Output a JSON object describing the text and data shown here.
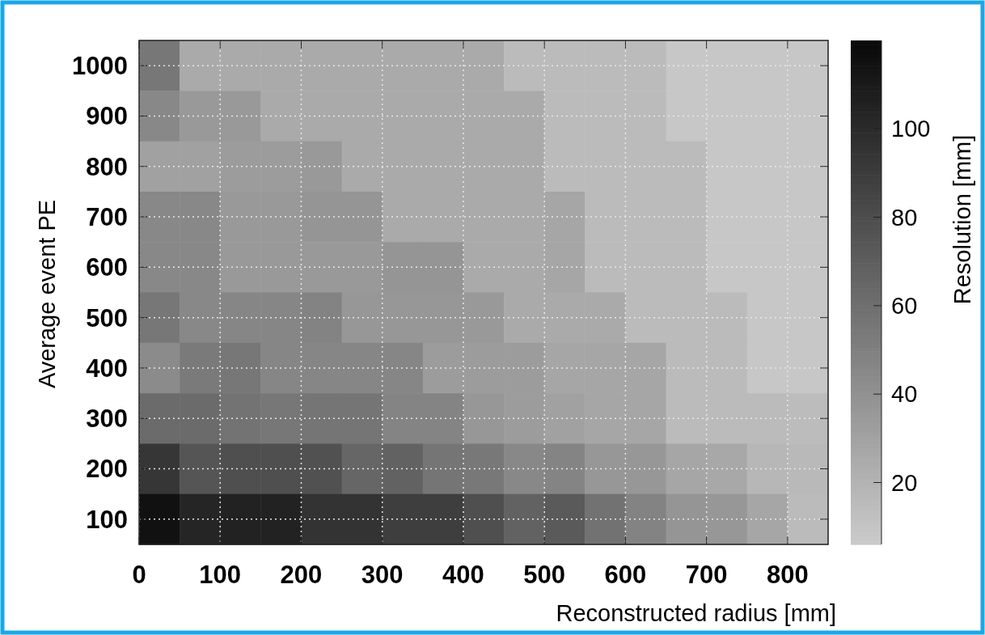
{
  "chart_data": {
    "type": "heatmap",
    "xlabel": "Reconstructed radius [mm]",
    "ylabel": "Average event PE",
    "clabel": "Resolution [mm]",
    "xlim": [
      0,
      850
    ],
    "xticks": [
      0,
      100,
      200,
      300,
      400,
      500,
      600,
      700,
      800
    ],
    "ylim": [
      50,
      1050
    ],
    "yticks": [
      100,
      200,
      300,
      400,
      500,
      600,
      700,
      800,
      900,
      1000
    ],
    "clim": [
      6,
      120
    ],
    "cticks": [
      20,
      40,
      60,
      80,
      100
    ],
    "grid": true,
    "cells": [
      [
        55,
        25,
        25,
        25,
        25,
        25,
        25,
        25,
        25,
        15,
        15,
        15,
        15,
        8,
        8,
        8,
        8
      ],
      [
        45,
        35,
        35,
        25,
        25,
        25,
        25,
        25,
        25,
        25,
        15,
        15,
        15,
        8,
        8,
        8,
        8
      ],
      [
        30,
        30,
        33,
        33,
        35,
        25,
        25,
        25,
        25,
        25,
        15,
        15,
        15,
        15,
        8,
        8,
        8
      ],
      [
        45,
        45,
        35,
        35,
        37,
        37,
        25,
        25,
        25,
        25,
        27,
        15,
        15,
        15,
        8,
        8,
        8
      ],
      [
        45,
        45,
        35,
        35,
        35,
        35,
        37,
        37,
        25,
        25,
        27,
        15,
        15,
        15,
        8,
        8,
        8
      ],
      [
        55,
        45,
        46,
        46,
        48,
        36,
        36,
        36,
        35,
        25,
        25,
        25,
        15,
        15,
        15,
        8,
        8
      ],
      [
        43,
        53,
        55,
        46,
        46,
        46,
        46,
        33,
        33,
        33,
        27,
        27,
        27,
        15,
        15,
        8,
        8
      ],
      [
        62,
        62,
        57,
        55,
        56,
        56,
        47,
        47,
        36,
        33,
        30,
        27,
        27,
        15,
        15,
        15,
        14
      ],
      [
        93,
        75,
        78,
        78,
        77,
        65,
        67,
        56,
        54,
        45,
        47,
        36,
        36,
        27,
        26,
        17,
        16
      ],
      [
        115,
        103,
        105,
        105,
        95,
        95,
        88,
        88,
        78,
        67,
        72,
        58,
        48,
        37,
        36,
        27,
        15
      ]
    ]
  }
}
